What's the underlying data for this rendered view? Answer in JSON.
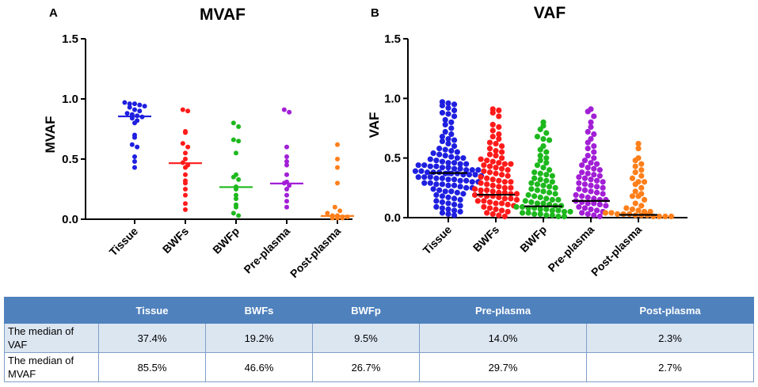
{
  "chart_data": [
    {
      "type": "scatter",
      "panel": "A",
      "title": "MVAF",
      "ylabel": "MVAF",
      "xlabel": "",
      "ylim": [
        0,
        1.5
      ],
      "yticks": [
        "0.0",
        "0.5",
        "1.0",
        "1.5"
      ],
      "categories": [
        "Tissue",
        "BWFs",
        "BWFp",
        "Pre-plasma",
        "Post-plasma"
      ],
      "colors": [
        "#1f1fe0",
        "#ff1a1a",
        "#1db81d",
        "#a21fd6",
        "#ff7f1a"
      ],
      "median_colors": [
        "#1f1fe0",
        "#ff1a1a",
        "#1db81d",
        "#a21fd6",
        "#ff7f1a"
      ],
      "medians": [
        0.855,
        0.466,
        0.267,
        0.297,
        0.027
      ],
      "series": [
        {
          "name": "Tissue",
          "values": [
            0.97,
            0.96,
            0.96,
            0.95,
            0.94,
            0.93,
            0.91,
            0.9,
            0.88,
            0.87,
            0.86,
            0.85,
            0.84,
            0.82,
            0.8,
            0.7,
            0.68,
            0.62,
            0.6,
            0.52,
            0.48,
            0.43
          ]
        },
        {
          "name": "BWFs",
          "values": [
            0.91,
            0.9,
            0.73,
            0.72,
            0.63,
            0.6,
            0.55,
            0.5,
            0.47,
            0.45,
            0.43,
            0.37,
            0.32,
            0.3,
            0.25,
            0.2,
            0.13,
            0.08
          ]
        },
        {
          "name": "BWFp",
          "values": [
            0.8,
            0.77,
            0.66,
            0.65,
            0.55,
            0.37,
            0.35,
            0.33,
            0.27,
            0.25,
            0.2,
            0.17,
            0.12,
            0.1,
            0.05,
            0.03
          ]
        },
        {
          "name": "Pre-plasma",
          "values": [
            0.91,
            0.89,
            0.6,
            0.52,
            0.48,
            0.45,
            0.37,
            0.31,
            0.3,
            0.28,
            0.25,
            0.2,
            0.15,
            0.1
          ]
        },
        {
          "name": "Post-plasma",
          "values": [
            0.62,
            0.5,
            0.43,
            0.3,
            0.1,
            0.07,
            0.05,
            0.03,
            0.03,
            0.02,
            0.02,
            0.01,
            0.01,
            0.01
          ]
        }
      ]
    },
    {
      "type": "scatter",
      "panel": "B",
      "title": "VAF",
      "ylabel": "VAF",
      "xlabel": "",
      "ylim": [
        0,
        1.5
      ],
      "yticks": [
        "0.0",
        "0.5",
        "1.0",
        "1.5"
      ],
      "categories": [
        "Tissue",
        "BWFs",
        "BWFp",
        "Pre-plasma",
        "Post-plasma"
      ],
      "colors": [
        "#1f1fe0",
        "#ff1a1a",
        "#1db81d",
        "#a21fd6",
        "#ff7f1a"
      ],
      "median_colors": [
        "#000000",
        "#000000",
        "#000000",
        "#000000",
        "#000000"
      ],
      "medians": [
        0.374,
        0.192,
        0.095,
        0.14,
        0.023
      ],
      "series": [
        {
          "name": "Tissue",
          "values": [
            0.97,
            0.96,
            0.95,
            0.94,
            0.92,
            0.9,
            0.88,
            0.87,
            0.85,
            0.82,
            0.8,
            0.78,
            0.75,
            0.72,
            0.7,
            0.68,
            0.66,
            0.65,
            0.64,
            0.62,
            0.6,
            0.58,
            0.57,
            0.56,
            0.55,
            0.54,
            0.53,
            0.52,
            0.51,
            0.5,
            0.5,
            0.49,
            0.48,
            0.47,
            0.46,
            0.46,
            0.45,
            0.45,
            0.44,
            0.44,
            0.43,
            0.43,
            0.42,
            0.42,
            0.41,
            0.41,
            0.4,
            0.4,
            0.4,
            0.39,
            0.39,
            0.38,
            0.38,
            0.38,
            0.37,
            0.37,
            0.37,
            0.36,
            0.36,
            0.36,
            0.35,
            0.35,
            0.34,
            0.34,
            0.34,
            0.33,
            0.33,
            0.32,
            0.32,
            0.31,
            0.31,
            0.3,
            0.3,
            0.29,
            0.29,
            0.28,
            0.28,
            0.27,
            0.27,
            0.26,
            0.25,
            0.25,
            0.24,
            0.23,
            0.22,
            0.22,
            0.21,
            0.2,
            0.19,
            0.18,
            0.17,
            0.16,
            0.15,
            0.14,
            0.13,
            0.12,
            0.11,
            0.1,
            0.09,
            0.08,
            0.07,
            0.06,
            0.05,
            0.04,
            0.03,
            0.02
          ]
        },
        {
          "name": "BWFs",
          "values": [
            0.91,
            0.9,
            0.88,
            0.85,
            0.78,
            0.76,
            0.73,
            0.7,
            0.68,
            0.66,
            0.63,
            0.62,
            0.6,
            0.58,
            0.56,
            0.55,
            0.53,
            0.52,
            0.5,
            0.49,
            0.48,
            0.47,
            0.46,
            0.45,
            0.45,
            0.44,
            0.43,
            0.42,
            0.41,
            0.4,
            0.39,
            0.38,
            0.37,
            0.36,
            0.35,
            0.34,
            0.33,
            0.32,
            0.31,
            0.3,
            0.3,
            0.29,
            0.28,
            0.27,
            0.26,
            0.25,
            0.25,
            0.24,
            0.23,
            0.23,
            0.22,
            0.21,
            0.21,
            0.2,
            0.2,
            0.19,
            0.19,
            0.18,
            0.18,
            0.17,
            0.16,
            0.16,
            0.15,
            0.14,
            0.14,
            0.13,
            0.12,
            0.12,
            0.11,
            0.1,
            0.09,
            0.08,
            0.07,
            0.06,
            0.05,
            0.04,
            0.03,
            0.02,
            0.01
          ]
        },
        {
          "name": "BWFp",
          "values": [
            0.8,
            0.77,
            0.74,
            0.71,
            0.68,
            0.66,
            0.65,
            0.6,
            0.57,
            0.55,
            0.52,
            0.5,
            0.48,
            0.46,
            0.44,
            0.42,
            0.4,
            0.38,
            0.37,
            0.36,
            0.35,
            0.33,
            0.32,
            0.31,
            0.3,
            0.29,
            0.28,
            0.27,
            0.26,
            0.25,
            0.24,
            0.23,
            0.22,
            0.21,
            0.2,
            0.19,
            0.18,
            0.17,
            0.16,
            0.15,
            0.15,
            0.14,
            0.13,
            0.12,
            0.12,
            0.11,
            0.1,
            0.1,
            0.09,
            0.09,
            0.08,
            0.08,
            0.07,
            0.07,
            0.06,
            0.06,
            0.05,
            0.05,
            0.04,
            0.04,
            0.03,
            0.03,
            0.02,
            0.02,
            0.01,
            0.01
          ]
        },
        {
          "name": "Pre-plasma",
          "values": [
            0.91,
            0.89,
            0.85,
            0.8,
            0.76,
            0.72,
            0.7,
            0.66,
            0.63,
            0.6,
            0.58,
            0.55,
            0.52,
            0.5,
            0.48,
            0.46,
            0.45,
            0.44,
            0.42,
            0.41,
            0.4,
            0.38,
            0.37,
            0.36,
            0.35,
            0.34,
            0.33,
            0.32,
            0.31,
            0.3,
            0.29,
            0.28,
            0.27,
            0.26,
            0.25,
            0.24,
            0.23,
            0.22,
            0.21,
            0.2,
            0.19,
            0.18,
            0.17,
            0.16,
            0.15,
            0.15,
            0.14,
            0.13,
            0.12,
            0.12,
            0.11,
            0.1,
            0.09,
            0.08,
            0.07,
            0.06,
            0.05,
            0.04,
            0.03,
            0.02,
            0.01
          ]
        },
        {
          "name": "Post-plasma",
          "values": [
            0.62,
            0.58,
            0.5,
            0.48,
            0.45,
            0.43,
            0.4,
            0.38,
            0.35,
            0.33,
            0.3,
            0.3,
            0.28,
            0.25,
            0.22,
            0.2,
            0.18,
            0.18,
            0.15,
            0.12,
            0.1,
            0.08,
            0.07,
            0.06,
            0.05,
            0.05,
            0.04,
            0.04,
            0.03,
            0.03,
            0.03,
            0.02,
            0.02,
            0.02,
            0.01,
            0.01,
            0.01,
            0.01
          ]
        }
      ]
    }
  ],
  "table": {
    "headers": [
      "",
      "Tissue",
      "BWFs",
      "BWFp",
      "Pre-plasma",
      "Post-plasma"
    ],
    "rows": [
      {
        "label": "The median of VAF",
        "values": [
          "37.4%",
          "19.2%",
          "9.5%",
          "14.0%",
          "2.3%"
        ]
      },
      {
        "label": "The median of MVAF",
        "values": [
          "85.5%",
          "46.6%",
          "26.7%",
          "29.7%",
          "2.7%"
        ]
      }
    ],
    "header_color": "#4f81bd",
    "row_shade_color": "#dce6f1"
  }
}
